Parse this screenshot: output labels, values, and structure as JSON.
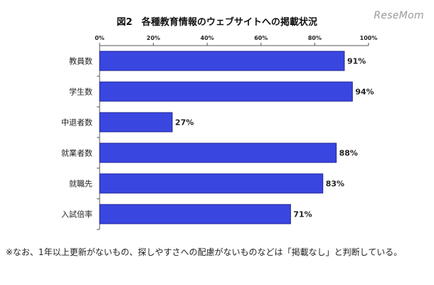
{
  "header": {
    "title": "図2　各種教育情報のウェブサイトへの掲載状況",
    "logo_text": "ReseMom"
  },
  "chart_data": {
    "type": "bar",
    "orientation": "horizontal",
    "title": "図2　各種教育情報のウェブサイトへの掲載状況",
    "categories": [
      "教員数",
      "学生数",
      "中退者数",
      "就業者数",
      "就職先",
      "入試倍率"
    ],
    "values": [
      91,
      94,
      27,
      88,
      83,
      71
    ],
    "value_labels": [
      "91%",
      "94%",
      "27%",
      "88%",
      "83%",
      "71%"
    ],
    "xlim": [
      0,
      100
    ],
    "xticks": [
      0,
      20,
      40,
      60,
      80,
      100
    ],
    "xtick_labels": [
      "0%",
      "20%",
      "40%",
      "60%",
      "80%",
      "100%"
    ],
    "xaxis_position": "top",
    "grid": false,
    "bar_color": "#3a46e0",
    "bar_edge_color": "#1c2396"
  },
  "footnote": "※なお、1年以上更新がないもの、探しやすさへの配慮がないものなどは「掲載なし」と判断している。"
}
